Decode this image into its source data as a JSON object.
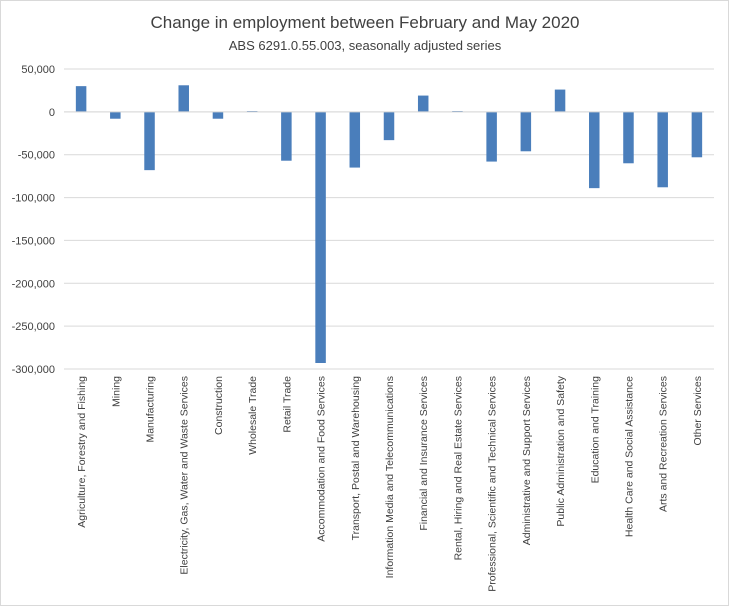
{
  "chart_data": {
    "type": "bar",
    "title": "Change in employment between February and May 2020",
    "subtitle": "ABS 6291.0.55.003,  seasonally adjusted series",
    "xlabel": "",
    "ylabel": "",
    "ylim": [
      -300000,
      50000
    ],
    "yticks": [
      50000,
      0,
      -50000,
      -100000,
      -150000,
      -200000,
      -250000,
      -300000
    ],
    "ytick_labels": [
      "50,000",
      "0",
      "-50,000",
      "-100,000",
      "-150,000",
      "-200,000",
      "-250,000",
      "-300,000"
    ],
    "grid": true,
    "legend": "none",
    "bar_color": "#4a7ebb",
    "grid_color": "#d9d9d9",
    "categories": [
      "Agriculture, Forestry and Fishing",
      "Mining",
      "Manufacturing",
      "Electricity, Gas, Water and Waste Services",
      "Construction",
      "Wholesale Trade",
      "Retail Trade",
      "Accommodation and Food Services",
      "Transport, Postal and Warehousing",
      "Information Media and Telecommunications",
      "Financial and Insurance Services",
      "Rental, Hiring and Real Estate Services",
      "Professional, Scientific and Technical Services",
      "Administrative and Support Services",
      "Public Administration and Safety",
      "Education and Training",
      "Health Care and Social Assistance",
      "Arts and Recreation Services",
      "Other Services"
    ],
    "values": [
      30000,
      -8000,
      -68000,
      31000,
      -8000,
      1000,
      -57000,
      -293000,
      -65000,
      -33000,
      19000,
      1000,
      -58000,
      -46000,
      26000,
      -89000,
      -60000,
      -88000,
      -53000
    ]
  }
}
